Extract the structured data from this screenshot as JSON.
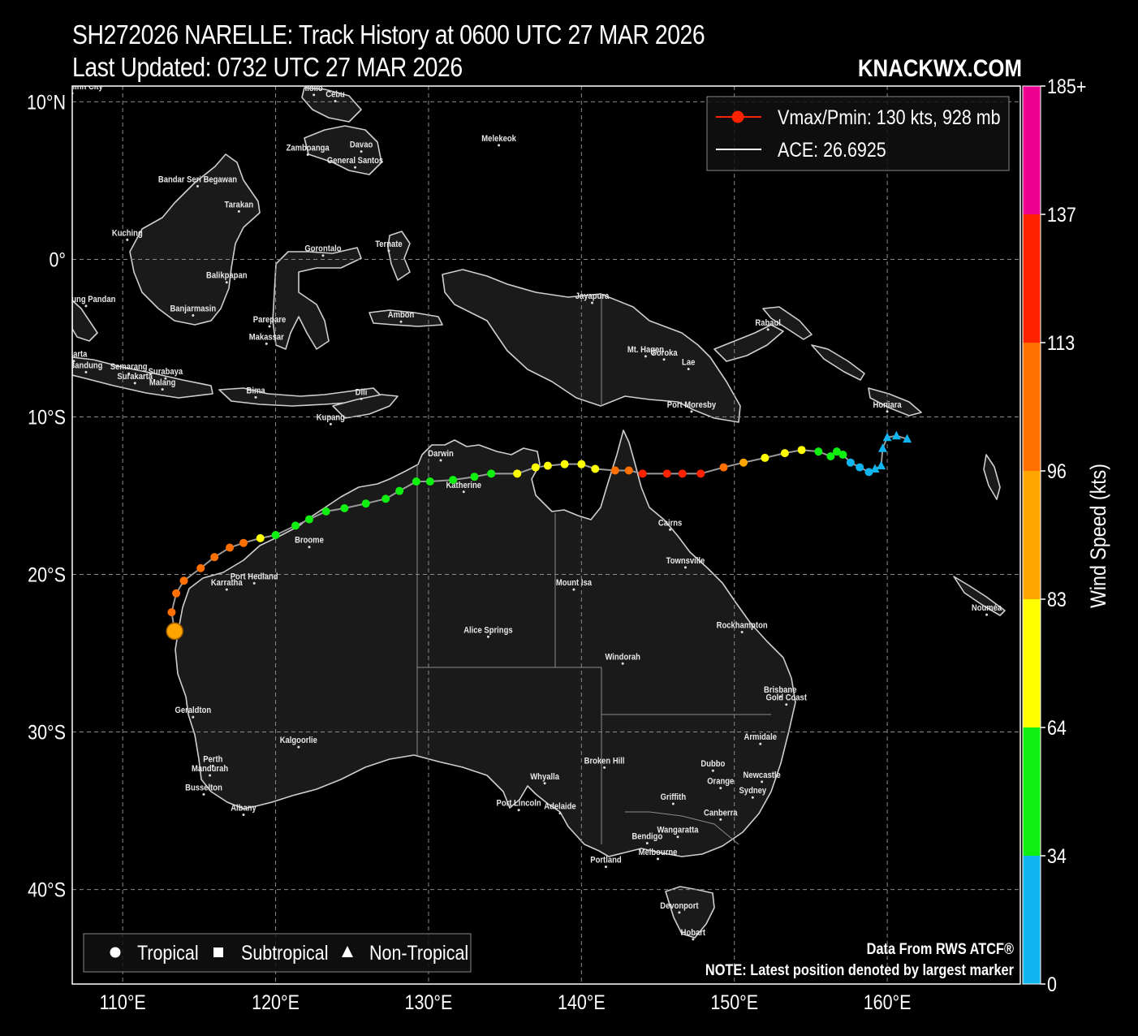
{
  "title": {
    "line1": "SH272026 NARELLE: Track History at 0600 UTC 27 MAR 2026",
    "line2": "Last Updated: 0732 UTC 27 MAR 2026",
    "brand": "KNACKWX.COM"
  },
  "map": {
    "lon_range": [
      106.7,
      168.7
    ],
    "lat_range": [
      -46.0,
      11.0
    ],
    "lon_ticks": [
      {
        "v": 110,
        "label": "110°E"
      },
      {
        "v": 120,
        "label": "120°E"
      },
      {
        "v": 130,
        "label": "130°E"
      },
      {
        "v": 140,
        "label": "140°E"
      },
      {
        "v": 150,
        "label": "150°E"
      },
      {
        "v": 160,
        "label": "160°E"
      }
    ],
    "lat_ticks": [
      {
        "v": 10,
        "label": "10°N"
      },
      {
        "v": 0,
        "label": "0°"
      },
      {
        "v": -10,
        "label": "10°S"
      },
      {
        "v": -20,
        "label": "20°S"
      },
      {
        "v": -30,
        "label": "30°S"
      },
      {
        "v": -40,
        "label": "40°S"
      }
    ],
    "grid": true,
    "colors": {
      "land": "#1a1a1a",
      "coast": "#cfcfcf",
      "ocean": "#000000",
      "track_line": "#9a9a9a",
      "grid": "#8a8a8a"
    }
  },
  "cities": [
    {
      "name": "Ho Chi Minh City",
      "lon": 106.7,
      "lat": 10.8
    },
    {
      "name": "Iloilo",
      "lon": 122.5,
      "lat": 10.7
    },
    {
      "name": "Cebu",
      "lon": 123.9,
      "lat": 10.3
    },
    {
      "name": "Zamboanga",
      "lon": 122.1,
      "lat": 6.9
    },
    {
      "name": "Davao",
      "lon": 125.6,
      "lat": 7.1
    },
    {
      "name": "General Santos",
      "lon": 125.2,
      "lat": 6.1
    },
    {
      "name": "Melekeok",
      "lon": 134.6,
      "lat": 7.5
    },
    {
      "name": "Bandar Seri Begawan",
      "lon": 114.9,
      "lat": 4.9
    },
    {
      "name": "Tarakan",
      "lon": 117.6,
      "lat": 3.3
    },
    {
      "name": "Kuching",
      "lon": 110.3,
      "lat": 1.5
    },
    {
      "name": "Gorontalo",
      "lon": 123.1,
      "lat": 0.5
    },
    {
      "name": "Ternate",
      "lon": 127.4,
      "lat": 0.8
    },
    {
      "name": "Balikpapan",
      "lon": 116.8,
      "lat": -1.2
    },
    {
      "name": "Tanjung Pandan",
      "lon": 107.6,
      "lat": -2.7
    },
    {
      "name": "Banjarmasin",
      "lon": 114.6,
      "lat": -3.3
    },
    {
      "name": "Parepare",
      "lon": 119.6,
      "lat": -4.0
    },
    {
      "name": "Ambon",
      "lon": 128.2,
      "lat": -3.7
    },
    {
      "name": "Jayapura",
      "lon": 140.7,
      "lat": -2.5
    },
    {
      "name": "Rabaul",
      "lon": 152.2,
      "lat": -4.2
    },
    {
      "name": "Makassar",
      "lon": 119.4,
      "lat": -5.1
    },
    {
      "name": "Jakarta",
      "lon": 106.8,
      "lat": -6.2
    },
    {
      "name": "Mt. Hagen",
      "lon": 144.2,
      "lat": -5.9
    },
    {
      "name": "Goroka",
      "lon": 145.4,
      "lat": -6.1
    },
    {
      "name": "Lae",
      "lon": 147.0,
      "lat": -6.7
    },
    {
      "name": "Semarang",
      "lon": 110.4,
      "lat": -7.0
    },
    {
      "name": "Bandung",
      "lon": 107.6,
      "lat": -6.9
    },
    {
      "name": "Surabaya",
      "lon": 112.8,
      "lat": -7.3
    },
    {
      "name": "Surakarta",
      "lon": 110.8,
      "lat": -7.6
    },
    {
      "name": "Malang",
      "lon": 112.6,
      "lat": -8.0
    },
    {
      "name": "Bima",
      "lon": 118.7,
      "lat": -8.5
    },
    {
      "name": "Dili",
      "lon": 125.6,
      "lat": -8.6
    },
    {
      "name": "Port Moresby",
      "lon": 147.2,
      "lat": -9.4
    },
    {
      "name": "Kupang",
      "lon": 123.6,
      "lat": -10.2
    },
    {
      "name": "Honiara",
      "lon": 160.0,
      "lat": -9.4
    },
    {
      "name": "Darwin",
      "lon": 130.8,
      "lat": -12.5
    },
    {
      "name": "Katherine",
      "lon": 132.3,
      "lat": -14.5
    },
    {
      "name": "Cairns",
      "lon": 145.8,
      "lat": -16.9
    },
    {
      "name": "Broome",
      "lon": 122.2,
      "lat": -18.0
    },
    {
      "name": "Townsville",
      "lon": 146.8,
      "lat": -19.3
    },
    {
      "name": "Port Hedland",
      "lon": 118.6,
      "lat": -20.3
    },
    {
      "name": "Mount Isa",
      "lon": 139.5,
      "lat": -20.7
    },
    {
      "name": "Karratha",
      "lon": 116.8,
      "lat": -20.7
    },
    {
      "name": "Nouméa",
      "lon": 166.5,
      "lat": -22.3
    },
    {
      "name": "Alice Springs",
      "lon": 133.9,
      "lat": -23.7
    },
    {
      "name": "Rockhampton",
      "lon": 150.5,
      "lat": -23.4
    },
    {
      "name": "Windorah",
      "lon": 142.7,
      "lat": -25.4
    },
    {
      "name": "Brisbane",
      "lon": 153.0,
      "lat": -27.5
    },
    {
      "name": "Gold Coast",
      "lon": 153.4,
      "lat": -28.0
    },
    {
      "name": "Geraldton",
      "lon": 114.6,
      "lat": -28.8
    },
    {
      "name": "Armidale",
      "lon": 151.7,
      "lat": -30.5
    },
    {
      "name": "Kalgoorlie",
      "lon": 121.5,
      "lat": -30.7
    },
    {
      "name": "Perth",
      "lon": 115.9,
      "lat": -31.9
    },
    {
      "name": "Broken Hill",
      "lon": 141.5,
      "lat": -32.0
    },
    {
      "name": "Dubbo",
      "lon": 148.6,
      "lat": -32.2
    },
    {
      "name": "Newcastle",
      "lon": 151.8,
      "lat": -32.9
    },
    {
      "name": "Mandurah",
      "lon": 115.7,
      "lat": -32.5
    },
    {
      "name": "Whyalla",
      "lon": 137.6,
      "lat": -33.0
    },
    {
      "name": "Orange",
      "lon": 149.1,
      "lat": -33.3
    },
    {
      "name": "Sydney",
      "lon": 151.2,
      "lat": -33.9
    },
    {
      "name": "Busselton",
      "lon": 115.3,
      "lat": -33.7
    },
    {
      "name": "Griffith",
      "lon": 146.0,
      "lat": -34.3
    },
    {
      "name": "Port Lincoln",
      "lon": 135.9,
      "lat": -34.7
    },
    {
      "name": "Adelaide",
      "lon": 138.6,
      "lat": -34.9
    },
    {
      "name": "Albany",
      "lon": 117.9,
      "lat": -35.0
    },
    {
      "name": "Canberra",
      "lon": 149.1,
      "lat": -35.3
    },
    {
      "name": "Wangaratta",
      "lon": 146.3,
      "lat": -36.4
    },
    {
      "name": "Bendigo",
      "lon": 144.3,
      "lat": -36.8
    },
    {
      "name": "Melbourne",
      "lon": 145.0,
      "lat": -37.8
    },
    {
      "name": "Portland",
      "lon": 141.6,
      "lat": -38.3
    },
    {
      "name": "Devonport",
      "lon": 146.4,
      "lat": -41.2
    },
    {
      "name": "Hobart",
      "lon": 147.3,
      "lat": -42.9
    }
  ],
  "track": [
    {
      "lon": 161.3,
      "lat": -11.4,
      "kt": 30,
      "type": "non-tropical"
    },
    {
      "lon": 160.6,
      "lat": -11.2,
      "kt": 30,
      "type": "non-tropical"
    },
    {
      "lon": 160.0,
      "lat": -11.3,
      "kt": 30,
      "type": "non-tropical"
    },
    {
      "lon": 159.7,
      "lat": -12.0,
      "kt": 30,
      "type": "non-tropical"
    },
    {
      "lon": 159.6,
      "lat": -13.1,
      "kt": 30,
      "type": "non-tropical"
    },
    {
      "lon": 159.2,
      "lat": -13.3,
      "kt": 30,
      "type": "non-tropical"
    },
    {
      "lon": 158.8,
      "lat": -13.5,
      "kt": 30,
      "type": "tropical"
    },
    {
      "lon": 158.2,
      "lat": -13.2,
      "kt": 30,
      "type": "tropical"
    },
    {
      "lon": 157.6,
      "lat": -12.9,
      "kt": 30,
      "type": "tropical"
    },
    {
      "lon": 157.1,
      "lat": -12.4,
      "kt": 40,
      "type": "tropical"
    },
    {
      "lon": 156.7,
      "lat": -12.2,
      "kt": 40,
      "type": "tropical"
    },
    {
      "lon": 156.3,
      "lat": -12.5,
      "kt": 40,
      "type": "tropical"
    },
    {
      "lon": 155.5,
      "lat": -12.2,
      "kt": 45,
      "type": "tropical"
    },
    {
      "lon": 154.4,
      "lat": -12.1,
      "kt": 70,
      "type": "tropical"
    },
    {
      "lon": 153.3,
      "lat": -12.3,
      "kt": 70,
      "type": "tropical"
    },
    {
      "lon": 152.0,
      "lat": -12.6,
      "kt": 70,
      "type": "tropical"
    },
    {
      "lon": 150.6,
      "lat": -12.9,
      "kt": 90,
      "type": "tropical"
    },
    {
      "lon": 149.3,
      "lat": -13.2,
      "kt": 100,
      "type": "tropical"
    },
    {
      "lon": 147.8,
      "lat": -13.6,
      "kt": 115,
      "type": "tropical"
    },
    {
      "lon": 146.6,
      "lat": -13.6,
      "kt": 120,
      "type": "tropical"
    },
    {
      "lon": 145.6,
      "lat": -13.6,
      "kt": 125,
      "type": "tropical"
    },
    {
      "lon": 144.0,
      "lat": -13.6,
      "kt": 125,
      "type": "tropical"
    },
    {
      "lon": 143.1,
      "lat": -13.4,
      "kt": 100,
      "type": "tropical"
    },
    {
      "lon": 142.2,
      "lat": -13.4,
      "kt": 100,
      "type": "tropical"
    },
    {
      "lon": 140.9,
      "lat": -13.3,
      "kt": 70,
      "type": "tropical"
    },
    {
      "lon": 140.0,
      "lat": -13.0,
      "kt": 70,
      "type": "tropical"
    },
    {
      "lon": 138.9,
      "lat": -13.0,
      "kt": 70,
      "type": "tropical"
    },
    {
      "lon": 137.8,
      "lat": -13.1,
      "kt": 70,
      "type": "tropical"
    },
    {
      "lon": 137.0,
      "lat": -13.2,
      "kt": 70,
      "type": "tropical"
    },
    {
      "lon": 135.8,
      "lat": -13.6,
      "kt": 70,
      "type": "tropical"
    },
    {
      "lon": 134.1,
      "lat": -13.6,
      "kt": 45,
      "type": "tropical"
    },
    {
      "lon": 133.0,
      "lat": -13.8,
      "kt": 45,
      "type": "tropical"
    },
    {
      "lon": 131.6,
      "lat": -14.0,
      "kt": 45,
      "type": "tropical"
    },
    {
      "lon": 130.1,
      "lat": -14.1,
      "kt": 45,
      "type": "tropical"
    },
    {
      "lon": 129.2,
      "lat": -14.1,
      "kt": 45,
      "type": "tropical"
    },
    {
      "lon": 128.1,
      "lat": -14.7,
      "kt": 45,
      "type": "tropical"
    },
    {
      "lon": 127.2,
      "lat": -15.2,
      "kt": 45,
      "type": "tropical"
    },
    {
      "lon": 125.9,
      "lat": -15.5,
      "kt": 45,
      "type": "tropical"
    },
    {
      "lon": 124.5,
      "lat": -15.8,
      "kt": 45,
      "type": "tropical"
    },
    {
      "lon": 123.3,
      "lat": -16.0,
      "kt": 45,
      "type": "tropical"
    },
    {
      "lon": 122.2,
      "lat": -16.5,
      "kt": 45,
      "type": "tropical"
    },
    {
      "lon": 121.3,
      "lat": -16.9,
      "kt": 45,
      "type": "tropical"
    },
    {
      "lon": 120.0,
      "lat": -17.5,
      "kt": 45,
      "type": "tropical"
    },
    {
      "lon": 119.0,
      "lat": -17.7,
      "kt": 70,
      "type": "tropical"
    },
    {
      "lon": 117.9,
      "lat": -18.0,
      "kt": 100,
      "type": "tropical"
    },
    {
      "lon": 117.0,
      "lat": -18.3,
      "kt": 100,
      "type": "tropical"
    },
    {
      "lon": 116.0,
      "lat": -18.9,
      "kt": 100,
      "type": "tropical"
    },
    {
      "lon": 115.1,
      "lat": -19.6,
      "kt": 100,
      "type": "tropical"
    },
    {
      "lon": 114.0,
      "lat": -20.4,
      "kt": 100,
      "type": "tropical"
    },
    {
      "lon": 113.5,
      "lat": -21.2,
      "kt": 100,
      "type": "tropical"
    },
    {
      "lon": 113.2,
      "lat": -22.4,
      "kt": 100,
      "type": "tropical"
    },
    {
      "lon": 113.4,
      "lat": -23.6,
      "kt": 90,
      "type": "tropical",
      "latest": true
    }
  ],
  "legend": {
    "vmax_label": "Vmax/Pmin: 130 kts, 928 mb",
    "ace_label": "ACE: 26.6925",
    "vmax_color": "#ff2200"
  },
  "type_legend": {
    "tropical": "Tropical",
    "subtropical": "Subtropical",
    "non_tropical": "Non-Tropical"
  },
  "footer": {
    "source": "Data From RWS ATCF®",
    "note": "NOTE: Latest position denoted by largest marker"
  },
  "colorbar": {
    "label": "Wind Speed (kts)",
    "bands": [
      {
        "from": 0,
        "to": 34,
        "color": "#10b4ee"
      },
      {
        "from": 34,
        "to": 64,
        "color": "#10f010"
      },
      {
        "from": 64,
        "to": 83,
        "color": "#ffff00"
      },
      {
        "from": 83,
        "to": 96,
        "color": "#ffa500"
      },
      {
        "from": 96,
        "to": 113,
        "color": "#ff7000"
      },
      {
        "from": 113,
        "to": 137,
        "color": "#ff2200"
      },
      {
        "from": 137,
        "to": 185,
        "color": "#ee0090"
      }
    ],
    "ticks": [
      {
        "v": 0,
        "label": "0"
      },
      {
        "v": 34,
        "label": "34"
      },
      {
        "v": 64,
        "label": "64"
      },
      {
        "v": 83,
        "label": "83"
      },
      {
        "v": 96,
        "label": "96"
      },
      {
        "v": 113,
        "label": "113"
      },
      {
        "v": 137,
        "label": "137"
      },
      {
        "v": 185,
        "label": "185+"
      }
    ]
  }
}
